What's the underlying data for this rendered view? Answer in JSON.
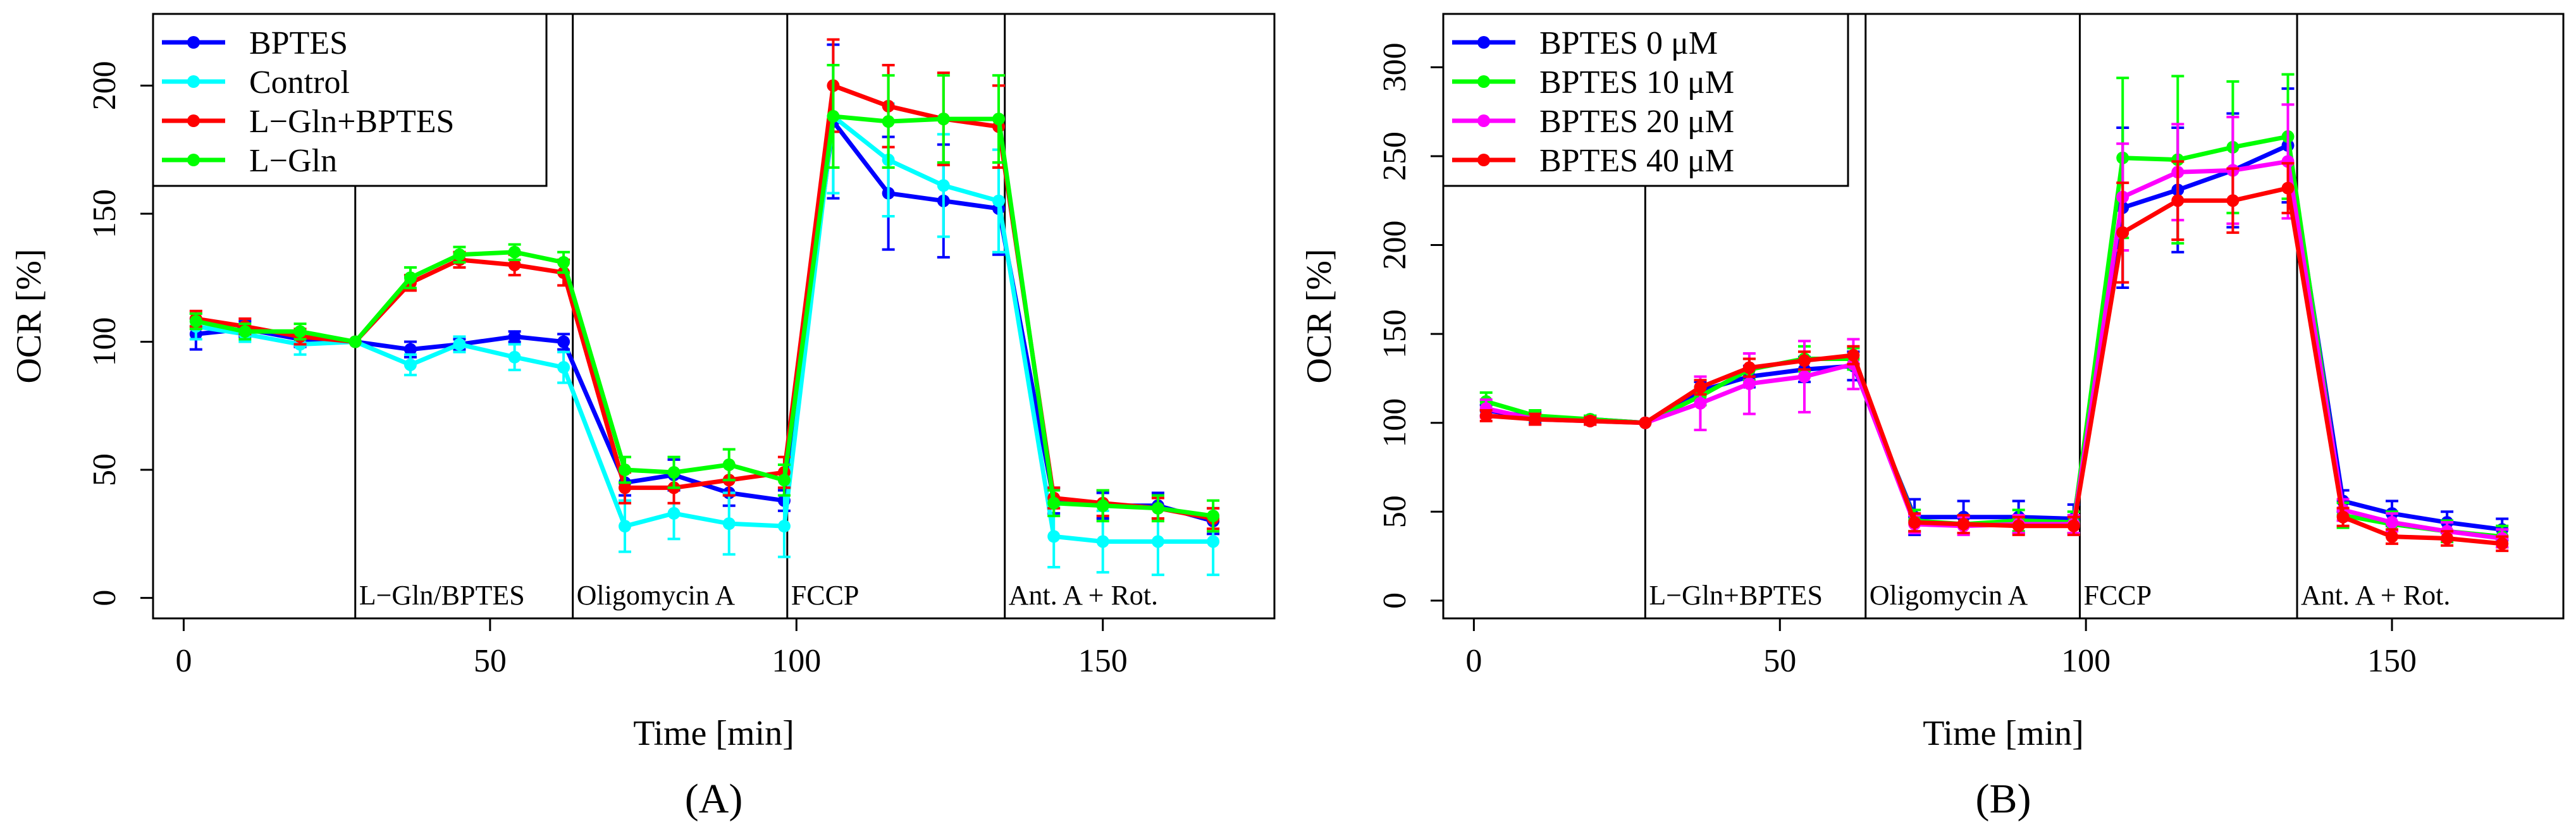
{
  "chart_data": [
    {
      "type": "line",
      "panel_label": "(A)",
      "title": "",
      "xlabel": "Time [min]",
      "ylabel": "OCR [%]",
      "xlim": [
        -5,
        178
      ],
      "ylim": [
        -8,
        228
      ],
      "x_ticks": [
        0,
        50,
        100,
        150
      ],
      "y_ticks": [
        0,
        50,
        100,
        150,
        200
      ],
      "legend_position": "top-left",
      "x": [
        2,
        10,
        19,
        28,
        37,
        45,
        54,
        62,
        72,
        80,
        89,
        98,
        106,
        115,
        124,
        133,
        142,
        150,
        159,
        168
      ],
      "series": [
        {
          "name": "BPTES",
          "color": "#0000ff",
          "values": [
            103,
            105,
            101,
            100,
            97,
            99,
            102,
            100,
            45,
            48,
            41,
            38,
            186,
            158,
            155,
            152,
            38,
            36,
            36,
            30
          ],
          "errors": [
            6,
            3,
            3,
            0,
            3,
            2,
            2,
            3,
            5,
            6,
            5,
            4,
            30,
            22,
            22,
            18,
            5,
            5,
            5,
            5
          ]
        },
        {
          "name": "Control",
          "color": "#00ffff",
          "values": [
            106,
            103,
            99,
            100,
            91,
            99,
            94,
            90,
            28,
            33,
            29,
            28,
            188,
            171,
            161,
            155,
            24,
            22,
            22,
            22
          ],
          "errors": [
            5,
            3,
            4,
            0,
            4,
            3,
            5,
            6,
            10,
            10,
            12,
            12,
            30,
            22,
            20,
            20,
            12,
            12,
            13,
            13
          ]
        },
        {
          "name": "L−Gln+BPTES",
          "color": "#ff0000",
          "values": [
            109,
            106,
            102,
            100,
            123,
            132,
            130,
            127,
            43,
            43,
            46,
            49,
            200,
            192,
            187,
            184,
            39,
            37,
            35,
            31
          ],
          "errors": [
            3,
            3,
            3,
            0,
            3,
            3,
            4,
            5,
            6,
            6,
            6,
            6,
            18,
            16,
            18,
            16,
            4,
            5,
            4,
            4
          ]
        },
        {
          "name": "L−Gln",
          "color": "#00ff00",
          "values": [
            108,
            104,
            104,
            100,
            125,
            134,
            135,
            131,
            50,
            49,
            52,
            46,
            188,
            186,
            187,
            187,
            37,
            36,
            35,
            32
          ],
          "errors": [
            3,
            3,
            3,
            0,
            4,
            3,
            3,
            4,
            5,
            6,
            6,
            6,
            20,
            18,
            17,
            17,
            5,
            6,
            5,
            6
          ]
        }
      ],
      "events": [
        {
          "x": 28,
          "label": "L−Gln/BPTES"
        },
        {
          "x": 63.5,
          "label": "Oligomycin A"
        },
        {
          "x": 98.5,
          "label": "FCCP"
        },
        {
          "x": 134,
          "label": "Ant. A + Rot."
        }
      ]
    },
    {
      "type": "line",
      "panel_label": "(B)",
      "title": "",
      "xlabel": "Time [min]",
      "ylabel": "OCR [%]",
      "xlim": [
        -5,
        178
      ],
      "ylim": [
        -10,
        330
      ],
      "x_ticks": [
        0,
        50,
        100,
        150
      ],
      "y_ticks": [
        0,
        50,
        100,
        150,
        200,
        250,
        300
      ],
      "legend_position": "top-left",
      "x": [
        2,
        10,
        19,
        28,
        37,
        45,
        54,
        62,
        72,
        80,
        89,
        98,
        106,
        115,
        124,
        133,
        142,
        150,
        159,
        168
      ],
      "series": [
        {
          "name": "BPTES 0 μM",
          "color": "#0000ff",
          "values": [
            107,
            103,
            102,
            100,
            118,
            126,
            130,
            132,
            47,
            47,
            47,
            46,
            221,
            231,
            242,
            256,
            56,
            49,
            44,
            40
          ],
          "errors": [
            3,
            3,
            2,
            0,
            5,
            6,
            7,
            8,
            10,
            9,
            9,
            8,
            45,
            35,
            32,
            32,
            6,
            7,
            6,
            6
          ]
        },
        {
          "name": "BPTES 10 μM",
          "color": "#00ff00",
          "values": [
            112,
            104,
            102,
            100,
            115,
            130,
            136,
            136,
            45,
            43,
            45,
            44,
            249,
            248,
            255,
            261,
            48,
            43,
            39,
            36
          ],
          "errors": [
            5,
            3,
            2,
            0,
            5,
            6,
            7,
            6,
            6,
            5,
            6,
            6,
            45,
            47,
            37,
            35,
            7,
            7,
            6,
            6
          ]
        },
        {
          "name": "BPTES 20 μM",
          "color": "#ff00ff",
          "values": [
            108,
            102,
            101,
            100,
            111,
            122,
            126,
            133,
            43,
            42,
            43,
            43,
            227,
            241,
            242,
            247,
            51,
            44,
            39,
            35
          ],
          "errors": [
            5,
            3,
            2,
            0,
            15,
            17,
            20,
            14,
            5,
            5,
            5,
            5,
            30,
            27,
            30,
            32,
            6,
            5,
            5,
            5
          ]
        },
        {
          "name": "BPTES 40 μM",
          "color": "#ff0000",
          "values": [
            104,
            102,
            101,
            100,
            120,
            131,
            135,
            138,
            44,
            43,
            42,
            42,
            207,
            225,
            225,
            232,
            47,
            36,
            35,
            32
          ],
          "errors": [
            3,
            3,
            2,
            0,
            4,
            5,
            5,
            5,
            5,
            5,
            5,
            5,
            28,
            22,
            18,
            14,
            5,
            4,
            4,
            4
          ]
        }
      ],
      "events": [
        {
          "x": 28,
          "label": "L−Gln+BPTES"
        },
        {
          "x": 64,
          "label": "Oligomycin A"
        },
        {
          "x": 99,
          "label": "FCCP"
        },
        {
          "x": 134.5,
          "label": "Ant. A + Rot."
        }
      ]
    }
  ]
}
